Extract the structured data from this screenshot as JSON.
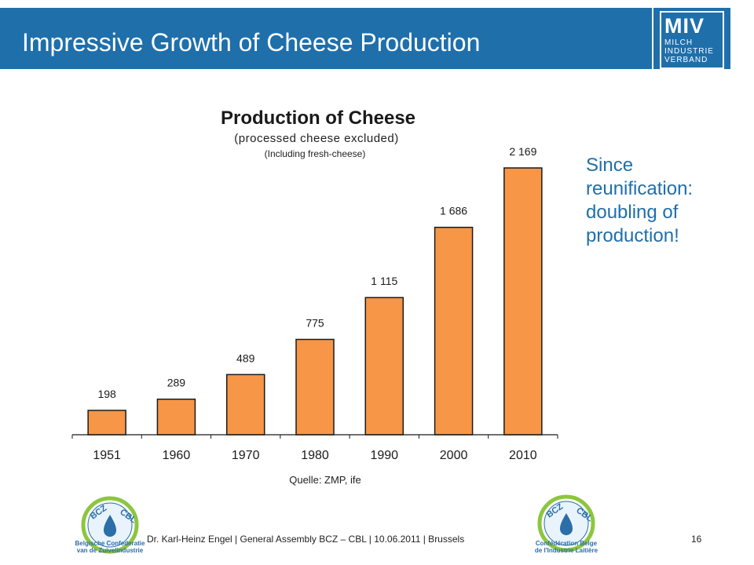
{
  "header": {
    "title": "Impressive Growth of Cheese Production",
    "logo_text": "MIV",
    "logo_lines": [
      "MILCH",
      "INDUSTRIE",
      "VERBAND"
    ]
  },
  "side_note": [
    "Since",
    "reunification:",
    "doubling of",
    "production!"
  ],
  "footer": {
    "text": "Dr. Karl-Heinz Engel | General Assembly BCZ – CBL | 10.06.2011 | Brussels",
    "page_number": "16",
    "logo_left_caption": [
      "Belgische Confederatie",
      "van de Zuivelindustrie"
    ],
    "logo_right_caption": [
      "Confédération Belge",
      "de l'Industrie Laitière"
    ],
    "logo_letters": "BCZ CBL"
  },
  "colors": {
    "header_blue": "#1f6fab",
    "bar_fill": "#f79646",
    "bar_stroke": "#1a1a1a",
    "accent_text": "#1f6fab"
  },
  "chart_data": {
    "type": "bar",
    "title": "Production of Cheese",
    "subtitle": "(processed cheese excluded)",
    "subtitle2": "(Including fresh-cheese)",
    "categories": [
      "1951",
      "1960",
      "1970",
      "1980",
      "1990",
      "2000",
      "2010"
    ],
    "values": [
      198,
      289,
      489,
      775,
      1115,
      1686,
      2169
    ],
    "value_labels": [
      "198",
      "289",
      "489",
      "775",
      "1 115",
      "1 686",
      "2 169"
    ],
    "source": "Quelle: ZMP, ife",
    "ylim": [
      0,
      2169
    ],
    "grid": false,
    "legend": "none"
  }
}
